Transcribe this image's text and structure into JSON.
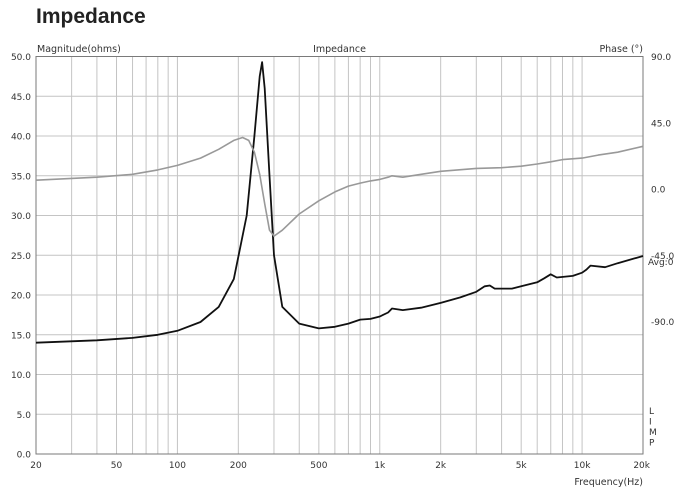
{
  "page_title": "Impedance",
  "chart_data": {
    "type": "line",
    "title": "Impedance",
    "xlabel": "Frequency(Hz)",
    "ylabel": "Magnitude(ohms)",
    "y2label": "Phase (°)",
    "x_scale": "log",
    "xlim": [
      20,
      20000
    ],
    "ylim": [
      0,
      50
    ],
    "y2lim": [
      -180,
      90
    ],
    "grid": true,
    "x_ticks": [
      {
        "value": 20,
        "label": "20"
      },
      {
        "value": 50,
        "label": "50"
      },
      {
        "value": 100,
        "label": "100"
      },
      {
        "value": 200,
        "label": "200"
      },
      {
        "value": 500,
        "label": "500"
      },
      {
        "value": 1000,
        "label": "1k"
      },
      {
        "value": 2000,
        "label": "2k"
      },
      {
        "value": 5000,
        "label": "5k"
      },
      {
        "value": 10000,
        "label": "10k"
      },
      {
        "value": 20000,
        "label": "20k"
      }
    ],
    "y_ticks": [
      "0.0",
      "5.0",
      "10.0",
      "15.0",
      "20.0",
      "25.0",
      "30.0",
      "35.0",
      "40.0",
      "45.0",
      "50.0"
    ],
    "y2_ticks": [
      {
        "value": 90,
        "label": "90.0"
      },
      {
        "value": 45,
        "label": "45.0"
      },
      {
        "value": 0,
        "label": "0.0"
      },
      {
        "value": -45,
        "label": "-45.0"
      },
      {
        "value": -90,
        "label": "-90.0"
      }
    ],
    "annotations": {
      "avg": "Avg:0",
      "limp": [
        "L",
        "I",
        "M",
        "P"
      ]
    },
    "series": [
      {
        "axis": "left",
        "color": "#111111",
        "x": [
          20,
          40,
          60,
          80,
          100,
          130,
          160,
          190,
          220,
          240,
          255,
          262,
          270,
          285,
          300,
          330,
          400,
          500,
          600,
          700,
          800,
          900,
          1000,
          1100,
          1150,
          1300,
          1600,
          2000,
          2500,
          3000,
          3300,
          3500,
          3700,
          4500,
          5000,
          6000,
          6500,
          7000,
          7500,
          9000,
          10000,
          10500,
          11000,
          13000,
          15000,
          20000
        ],
        "values": [
          14.0,
          14.3,
          14.6,
          15.0,
          15.5,
          16.6,
          18.5,
          22.0,
          30.0,
          40.0,
          47.5,
          49.3,
          46.0,
          35.0,
          25.0,
          18.5,
          16.4,
          15.8,
          16.0,
          16.4,
          16.9,
          17.0,
          17.3,
          17.8,
          18.3,
          18.1,
          18.4,
          19.0,
          19.7,
          20.4,
          21.1,
          21.2,
          20.8,
          20.8,
          21.1,
          21.6,
          22.1,
          22.6,
          22.2,
          22.4,
          22.8,
          23.2,
          23.7,
          23.5,
          24.0,
          24.9
        ]
      },
      {
        "axis": "right",
        "color": "#999999",
        "x": [
          20,
          40,
          60,
          80,
          100,
          130,
          160,
          190,
          210,
          225,
          240,
          255,
          270,
          285,
          300,
          330,
          400,
          500,
          600,
          700,
          800,
          900,
          1000,
          1100,
          1150,
          1300,
          1600,
          2000,
          3000,
          4000,
          5000,
          6000,
          7000,
          8000,
          10000,
          12000,
          15000,
          20000
        ],
        "values": [
          6.0,
          8.0,
          10.0,
          13.0,
          16.0,
          21.0,
          27.0,
          33.0,
          35.0,
          33.0,
          25.0,
          10.0,
          -10.0,
          -28.0,
          -32.0,
          -28.0,
          -17.0,
          -8.0,
          -2.0,
          2.0,
          4.0,
          5.5,
          6.5,
          8.0,
          9.0,
          8.0,
          10.0,
          12.0,
          14.0,
          14.5,
          15.5,
          17.0,
          18.5,
          20.0,
          21.0,
          23.0,
          25.0,
          29.0
        ]
      }
    ]
  }
}
